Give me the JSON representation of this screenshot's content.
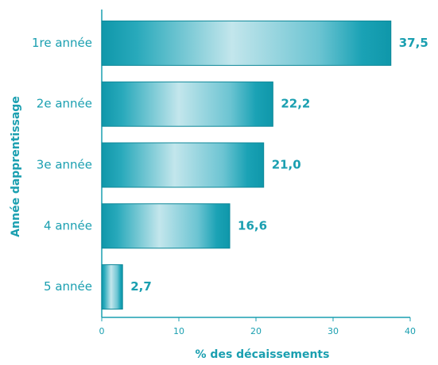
{
  "chart_data": {
    "type": "bar",
    "orientation": "horizontal",
    "categories": [
      "1re année",
      "2e année",
      "3e année",
      "4 année",
      "5 année"
    ],
    "values": [
      37.5,
      22.2,
      21.0,
      16.6,
      2.7
    ],
    "value_labels": [
      "37,5",
      "22,2",
      "21,0",
      "16,6",
      "2,7"
    ],
    "color": "#1a9fb0",
    "xlabel": "% des décaissements",
    "ylabel": "Année dapprentissage",
    "xlim": [
      0,
      40
    ],
    "xticks": [
      0,
      10,
      20,
      30,
      40
    ]
  }
}
